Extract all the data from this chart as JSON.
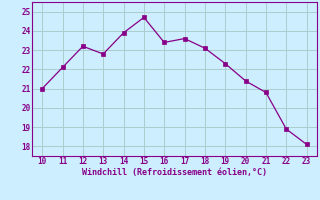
{
  "x": [
    10,
    11,
    12,
    13,
    14,
    15,
    16,
    17,
    18,
    19,
    20,
    21,
    22,
    23
  ],
  "y": [
    21.0,
    22.1,
    23.2,
    22.8,
    23.9,
    24.7,
    23.4,
    23.6,
    23.1,
    22.3,
    21.4,
    20.8,
    18.9,
    18.1
  ],
  "line_color": "#880088",
  "marker_color": "#880088",
  "bg_color": "#cceeff",
  "grid_color": "#aacccc",
  "xlabel": "Windchill (Refroidissement éolien,°C)",
  "xlabel_color": "#880088",
  "tick_color": "#880088",
  "xlim": [
    9.5,
    23.5
  ],
  "ylim": [
    17.5,
    25.5
  ],
  "xticks": [
    10,
    11,
    12,
    13,
    14,
    15,
    16,
    17,
    18,
    19,
    20,
    21,
    22,
    23
  ],
  "yticks": [
    18,
    19,
    20,
    21,
    22,
    23,
    24,
    25
  ]
}
